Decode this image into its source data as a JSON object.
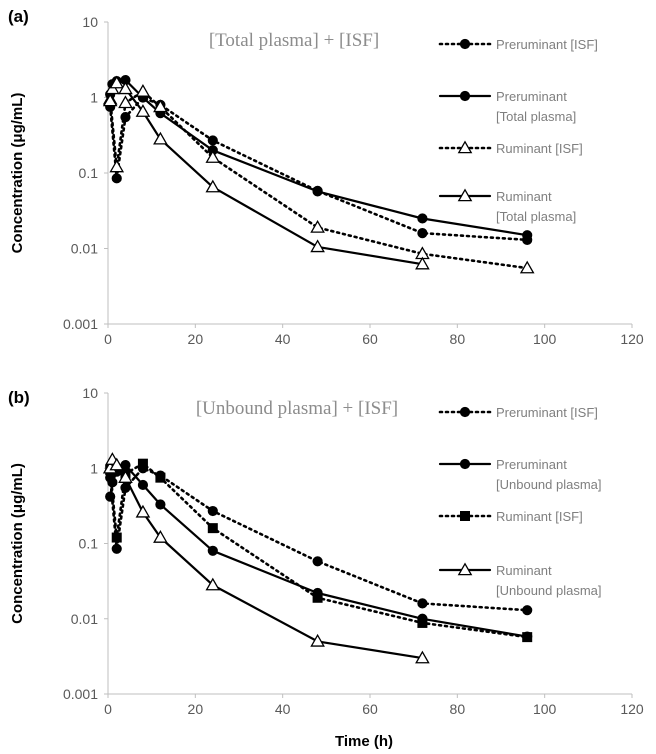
{
  "chart_data": [
    {
      "type": "line",
      "panel_label": "(a)",
      "annotation": "[Total plasma] + [ISF]",
      "xlabel": "",
      "ylabel": "Concentration (μg/mL)",
      "xlim": [
        0,
        120
      ],
      "ylim": [
        0.001,
        10
      ],
      "yscale": "log",
      "x_ticks": [
        "0",
        "20",
        "40",
        "60",
        "80",
        "100",
        "120"
      ],
      "y_ticks": [
        "10",
        "1",
        "0.1",
        "0.01",
        "0.001"
      ],
      "legend_position": "right",
      "series": [
        {
          "name": "Preruminant [ISF]",
          "line": "dotted",
          "marker": "filled-circle",
          "x": [
            0.5,
            2,
            4,
            8,
            12,
            24,
            48,
            72,
            96
          ],
          "y": [
            0.75,
            0.085,
            0.55,
            1.0,
            0.8,
            0.27,
            0.058,
            0.016,
            0.013
          ]
        },
        {
          "name": "Preruminant [Total plasma]",
          "line": "solid",
          "marker": "filled-circle",
          "x": [
            0.5,
            1,
            2,
            4,
            8,
            12,
            24,
            48,
            72,
            96
          ],
          "y": [
            1.1,
            1.5,
            1.65,
            1.7,
            1.0,
            0.62,
            0.2,
            0.057,
            0.025,
            0.015
          ]
        },
        {
          "name": "Ruminant [ISF]",
          "line": "dotted",
          "marker": "open-triangle",
          "x": [
            0.5,
            2,
            4,
            8,
            12,
            24,
            48,
            72,
            96
          ],
          "y": [
            0.95,
            0.12,
            0.85,
            1.2,
            0.75,
            0.16,
            0.019,
            0.0085,
            0.0055
          ]
        },
        {
          "name": "Ruminant [Total plasma]",
          "line": "solid",
          "marker": "open-triangle",
          "x": [
            0.5,
            1,
            2,
            4,
            8,
            12,
            24,
            48,
            72
          ],
          "y": [
            0.9,
            1.3,
            1.55,
            1.3,
            0.65,
            0.28,
            0.065,
            0.0105,
            0.0062
          ]
        }
      ]
    },
    {
      "type": "line",
      "panel_label": "(b)",
      "annotation": "[Unbound plasma] + [ISF]",
      "xlabel": "Time (h)",
      "ylabel": "Concentration (μg/mL)",
      "xlim": [
        0,
        120
      ],
      "ylim": [
        0.001,
        10
      ],
      "yscale": "log",
      "x_ticks": [
        "0",
        "20",
        "40",
        "60",
        "80",
        "100",
        "120"
      ],
      "y_ticks": [
        "10",
        "1",
        "0.1",
        "0.01",
        "0.001"
      ],
      "legend_position": "right",
      "series": [
        {
          "name": "Preruminant [ISF]",
          "line": "dotted",
          "marker": "filled-circle",
          "x": [
            0.5,
            2,
            4,
            8,
            12,
            24,
            48,
            72,
            96
          ],
          "y": [
            0.75,
            0.085,
            0.55,
            1.0,
            0.8,
            0.27,
            0.058,
            0.016,
            0.013
          ]
        },
        {
          "name": "Preruminant [Unbound plasma]",
          "line": "solid",
          "marker": "filled-circle",
          "x": [
            0.5,
            1,
            2,
            4,
            8,
            12,
            24,
            48,
            72,
            96
          ],
          "y": [
            0.42,
            0.65,
            0.9,
            1.1,
            0.6,
            0.33,
            0.08,
            0.022,
            0.01,
            0.0058
          ]
        },
        {
          "name": "Ruminant [ISF]",
          "line": "dotted",
          "marker": "filled-square",
          "x": [
            0.5,
            2,
            4,
            8,
            12,
            24,
            48,
            72,
            96
          ],
          "y": [
            0.95,
            0.12,
            0.85,
            1.15,
            0.75,
            0.16,
            0.019,
            0.0088,
            0.0057
          ]
        },
        {
          "name": "Ruminant [Unbound plasma]",
          "line": "solid",
          "marker": "open-triangle",
          "x": [
            0.5,
            1,
            2,
            4,
            8,
            12,
            24,
            48,
            72
          ],
          "y": [
            1.0,
            1.3,
            1.1,
            0.75,
            0.26,
            0.12,
            0.028,
            0.005,
            0.003
          ]
        }
      ]
    }
  ]
}
